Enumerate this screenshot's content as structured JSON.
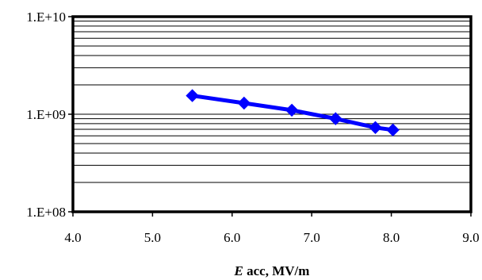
{
  "chart_data": {
    "type": "line",
    "title": "",
    "xlabel_italic": "E",
    "xlabel_rest": " acc, MV/m",
    "ylabel": "",
    "xlim": [
      4.0,
      9.0
    ],
    "ylim": [
      100000000,
      10000000000
    ],
    "yscale": "log",
    "x_ticks": [
      "4.0",
      "5.0",
      "6.0",
      "7.0",
      "8.0",
      "9.0"
    ],
    "y_ticks": [
      "1.E+08",
      "1.E+09",
      "1.E+10"
    ],
    "grid": "horizontal minor and major lines",
    "legend": "none",
    "series": [
      {
        "color": "#0000ff",
        "marker": "diamond",
        "points": [
          {
            "x": 5.5,
            "y": 1550000000
          },
          {
            "x": 6.15,
            "y": 1300000000
          },
          {
            "x": 6.75,
            "y": 1100000000
          },
          {
            "x": 7.3,
            "y": 900000000
          },
          {
            "x": 7.8,
            "y": 730000000
          },
          {
            "x": 8.02,
            "y": 690000000
          }
        ]
      }
    ]
  }
}
